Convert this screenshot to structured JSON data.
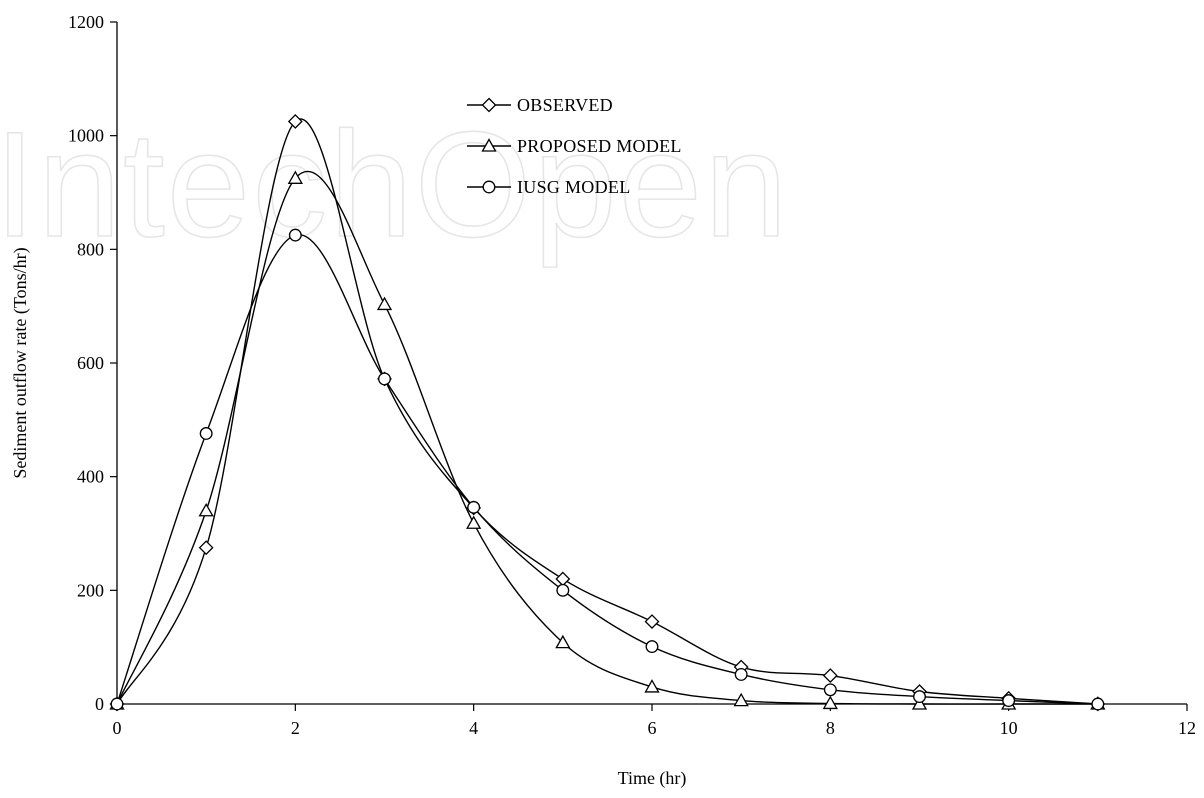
{
  "watermark": "IntechOpen",
  "chart_data": {
    "type": "line",
    "title": "",
    "xlabel": "Time (hr)",
    "ylabel": "Sediment outflow rate (Tons/hr)",
    "xlim": [
      0,
      12
    ],
    "ylim": [
      0,
      1200
    ],
    "xticks": [
      0,
      2,
      4,
      6,
      8,
      10,
      12
    ],
    "yticks": [
      0,
      200,
      400,
      600,
      800,
      1000,
      1200
    ],
    "grid": false,
    "legend_position": "top-center",
    "x": [
      0,
      1,
      2,
      3,
      4,
      5,
      6,
      7,
      8,
      9,
      10,
      11
    ],
    "series": [
      {
        "name": "OBSERVED",
        "marker": "diamond",
        "color": "#000000",
        "values": [
          0,
          275,
          1025,
          572,
          345,
          220,
          145,
          65,
          50,
          22,
          10,
          0
        ]
      },
      {
        "name": "PROPOSED MODEL",
        "marker": "triangle",
        "color": "#000000",
        "values": [
          0,
          340,
          925,
          703,
          318,
          108,
          30,
          6,
          1,
          0,
          0,
          0
        ]
      },
      {
        "name": "IUSG MODEL",
        "marker": "circle",
        "color": "#000000",
        "values": [
          0,
          476,
          825,
          572,
          346,
          200,
          101,
          52,
          25,
          13,
          6,
          0
        ]
      }
    ]
  }
}
